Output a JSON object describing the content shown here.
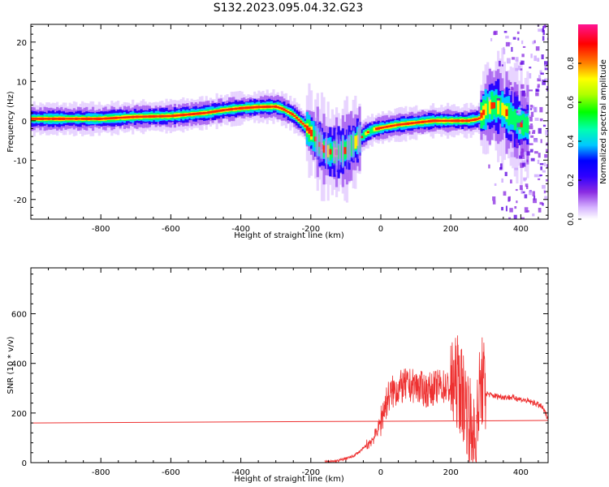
{
  "title": "S132.2023.095.04.32.G23",
  "chart_data": [
    {
      "type": "heatmap",
      "xlabel": "Height of straight line (km)",
      "ylabel": "Frequency (Hz)",
      "xlim": [
        -1000,
        478
      ],
      "ylim": [
        -25,
        24.5
      ],
      "xticks": [
        -800,
        -600,
        -400,
        -200,
        0,
        200,
        400
      ],
      "yticks": [
        -20,
        -10,
        0,
        10,
        20
      ],
      "colorbar": {
        "label": "Normalized spectral amplitude",
        "range": [
          0,
          1
        ],
        "ticks": [
          "0.0",
          "0.2",
          "0.4",
          "0.6",
          "0.8"
        ],
        "colormap": [
          "#ffffff",
          "#d6b3ff",
          "#8a2be2",
          "#2f00ff",
          "#0000ff",
          "#00c8ff",
          "#00ffb0",
          "#00ff00",
          "#b0ff00",
          "#ffff00",
          "#ff8000",
          "#ff0000",
          "#ff1493"
        ]
      },
      "ridge": {
        "x": [
          -1000,
          -900,
          -800,
          -700,
          -600,
          -500,
          -450,
          -400,
          -350,
          -300,
          -280,
          -250,
          -220,
          -200,
          -180,
          -160,
          -140,
          -120,
          -100,
          -80,
          -60,
          -40,
          -20,
          0,
          50,
          100,
          150,
          200,
          250,
          280,
          300,
          320,
          340,
          360,
          380,
          400
        ],
        "y": [
          0.5,
          0.5,
          0.5,
          1.0,
          1.2,
          2.0,
          2.7,
          3.2,
          3.5,
          3.6,
          3.0,
          1.5,
          -1.0,
          -3.0,
          -5.5,
          -7.5,
          -8.0,
          -8.0,
          -7.5,
          -6.0,
          -4.5,
          -3.0,
          -2.2,
          -1.8,
          -1.0,
          -0.5,
          0.0,
          0.0,
          0.0,
          0.5,
          3.0,
          4.0,
          3.5,
          2.0,
          0.5,
          -1.0
        ]
      }
    },
    {
      "type": "line",
      "xlabel": "Height of straight line (km)",
      "ylabel": "SNR (10 * v/v)",
      "xlim": [
        -1000,
        478
      ],
      "ylim": [
        0,
        785
      ],
      "xticks": [
        -800,
        -600,
        -400,
        -200,
        0,
        200,
        400
      ],
      "yticks": [
        0,
        200,
        400,
        600
      ],
      "color": "#ee3030",
      "trend": {
        "x": [
          -1000,
          478
        ],
        "y": [
          160,
          170
        ]
      },
      "series": [
        {
          "x": [
            -160,
            -120,
            -80,
            -60,
            -40,
            -20,
            -10,
            0,
            10,
            20,
            30,
            50,
            70,
            100,
            130,
            150,
            170,
            200,
            220,
            240,
            250,
            260,
            270,
            280,
            290,
            300,
            320,
            350,
            380,
            400,
            420,
            440,
            460,
            478
          ],
          "y": [
            0,
            8,
            25,
            45,
            70,
            100,
            130,
            170,
            220,
            260,
            280,
            300,
            310,
            310,
            290,
            300,
            310,
            300,
            330,
            250,
            200,
            120,
            50,
            260,
            330,
            280,
            270,
            265,
            262,
            255,
            248,
            240,
            225,
            180
          ]
        }
      ]
    }
  ]
}
